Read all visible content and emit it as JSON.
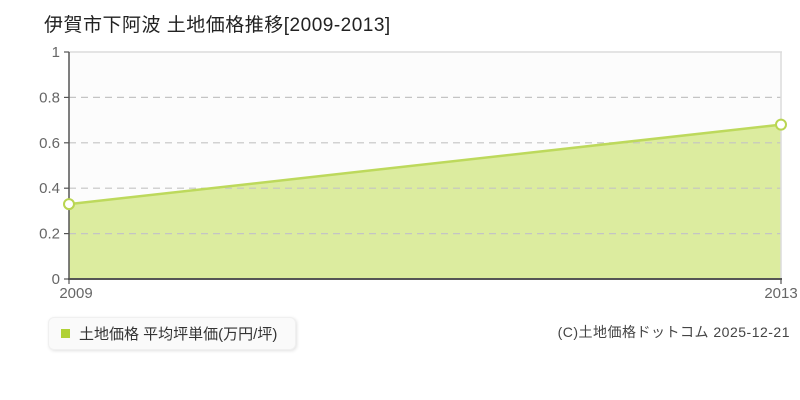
{
  "title": "伊賀市下阿波 土地価格推移[2009-2013]",
  "legend": {
    "label": "土地価格 平均坪単価(万円/坪)",
    "marker_color": "#b0d135"
  },
  "copyright": "(C)土地価格ドットコム 2025-12-21",
  "chart_data": {
    "type": "area",
    "title": "伊賀市下阿波 土地価格推移[2009-2013]",
    "x": [
      2009,
      2013
    ],
    "x_tick_labels": [
      "2009",
      "2013"
    ],
    "series": [
      {
        "name": "土地価格 平均坪単価(万円/坪)",
        "values": [
          0.33,
          0.68
        ]
      }
    ],
    "y_ticks": [
      0,
      0.2,
      0.4,
      0.6,
      0.8,
      1
    ],
    "ylim": [
      0,
      1
    ],
    "xlabel": "",
    "ylabel": "",
    "grid": true,
    "legend_position": "bottom-left",
    "colors": {
      "line": "#bdd95c",
      "fill": "#dcec9f",
      "marker_fill": "#ffffff",
      "marker_stroke": "#b9d551",
      "grid": "#c4c4c4",
      "axis": "#555555",
      "plot_border": "#dcdcdc",
      "tick_text": "#666666"
    }
  }
}
